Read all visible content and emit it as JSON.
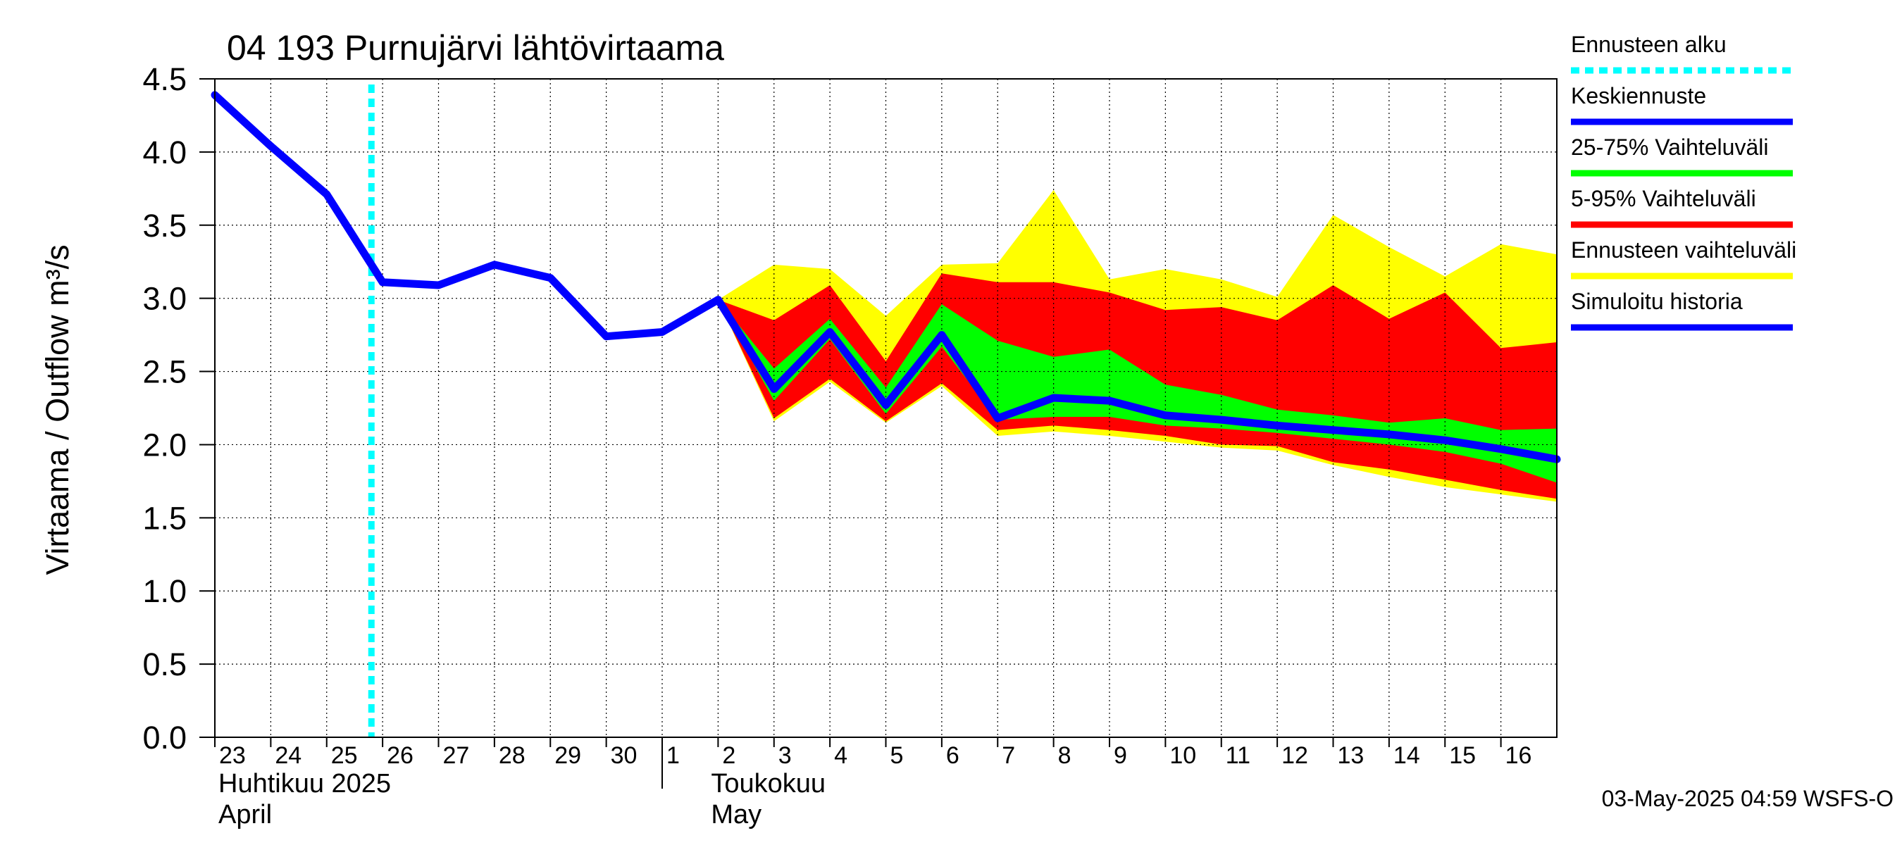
{
  "chart_data": {
    "type": "area",
    "title": "04 193 Purnujärvi lähtövirtaama",
    "ylabel": "Virtaama / Outflow    m³/s",
    "ylim": [
      0,
      4.5
    ],
    "yticks": [
      "0.0",
      "0.5",
      "1.0",
      "1.5",
      "2.0",
      "2.5",
      "3.0",
      "3.5",
      "4.0",
      "4.5"
    ],
    "x_tick_labels": [
      "23",
      "24",
      "25",
      "26",
      "27",
      "28",
      "29",
      "30",
      "1",
      "2",
      "3",
      "4",
      "5",
      "6",
      "7",
      "8",
      "9",
      "10",
      "11",
      "12",
      "13",
      "14",
      "15",
      "16"
    ],
    "month_labels": [
      {
        "name": "Huhtikuu  2025",
        "english": "April"
      },
      {
        "name": "Toukokuu",
        "english": "May"
      }
    ],
    "forecast_start_day": 2.8,
    "series": [
      {
        "name": "Simuloitu historia",
        "color": "#0000ff",
        "x": [
          0,
          1,
          2,
          3,
          4,
          5,
          6,
          7,
          8,
          9
        ],
        "values": [
          4.39,
          4.04,
          3.71,
          3.11,
          3.09,
          3.23,
          3.14,
          2.74,
          2.77,
          2.99
        ]
      },
      {
        "name": "Keskiennuste",
        "color": "#0000ff",
        "x": [
          9,
          10,
          11,
          12,
          13,
          14,
          15,
          16,
          17,
          18,
          19,
          20,
          21,
          22,
          23,
          24
        ],
        "values": [
          2.99,
          2.38,
          2.77,
          2.27,
          2.75,
          2.18,
          2.32,
          2.3,
          2.2,
          2.17,
          2.13,
          2.1,
          2.07,
          2.03,
          1.97,
          1.9
        ]
      }
    ],
    "bands": [
      {
        "name": "Ennusteen vaihteluväli",
        "color": "#ffff00",
        "x": [
          9,
          10,
          11,
          12,
          13,
          14,
          15,
          16,
          17,
          18,
          19,
          20,
          21,
          22,
          23,
          24
        ],
        "upper": [
          2.99,
          3.23,
          3.2,
          2.88,
          3.23,
          3.24,
          3.74,
          3.13,
          3.2,
          3.13,
          3.01,
          3.57,
          3.35,
          3.15,
          3.37,
          3.3
        ],
        "lower": [
          2.99,
          2.16,
          2.43,
          2.15,
          2.4,
          2.06,
          2.09,
          2.06,
          2.02,
          1.98,
          1.96,
          1.86,
          1.78,
          1.71,
          1.66,
          1.61
        ]
      },
      {
        "name": "5-95% Vaihteluväli",
        "color": "#ff0000",
        "x": [
          9,
          10,
          11,
          12,
          13,
          14,
          15,
          16,
          17,
          18,
          19,
          20,
          21,
          22,
          23,
          24
        ],
        "upper": [
          2.99,
          2.85,
          3.09,
          2.57,
          3.17,
          3.11,
          3.11,
          3.04,
          2.92,
          2.94,
          2.85,
          3.09,
          2.86,
          3.04,
          2.66,
          2.7
        ],
        "lower": [
          2.99,
          2.18,
          2.45,
          2.16,
          2.42,
          2.1,
          2.13,
          2.1,
          2.06,
          2.0,
          1.99,
          1.88,
          1.83,
          1.76,
          1.69,
          1.63
        ]
      },
      {
        "name": "25-75% Vaihteluväli",
        "color": "#00ff00",
        "x": [
          9,
          10,
          11,
          12,
          13,
          14,
          15,
          16,
          17,
          18,
          19,
          20,
          21,
          22,
          23,
          24
        ],
        "upper": [
          2.99,
          2.52,
          2.86,
          2.39,
          2.96,
          2.71,
          2.6,
          2.65,
          2.41,
          2.34,
          2.24,
          2.2,
          2.15,
          2.18,
          2.1,
          2.11
        ],
        "lower": [
          2.99,
          2.3,
          2.72,
          2.21,
          2.67,
          2.17,
          2.19,
          2.19,
          2.13,
          2.11,
          2.08,
          2.04,
          2.0,
          1.95,
          1.87,
          1.74
        ]
      }
    ],
    "legend": [
      {
        "label": "Ennusteen alku",
        "color": "#00ffff",
        "style": "dotted"
      },
      {
        "label": "Keskiennuste",
        "color": "#0000ff",
        "style": "solid"
      },
      {
        "label": "25-75% Vaihteluväli",
        "color": "#00ff00",
        "style": "solid"
      },
      {
        "label": "5-95% Vaihteluväli",
        "color": "#ff0000",
        "style": "solid"
      },
      {
        "label": "Ennusteen vaihteluväli",
        "color": "#ffff00",
        "style": "solid"
      },
      {
        "label": "Simuloitu historia",
        "color": "#0000ff",
        "style": "solid"
      }
    ],
    "footer": "03-May-2025 04:59 WSFS-O"
  }
}
